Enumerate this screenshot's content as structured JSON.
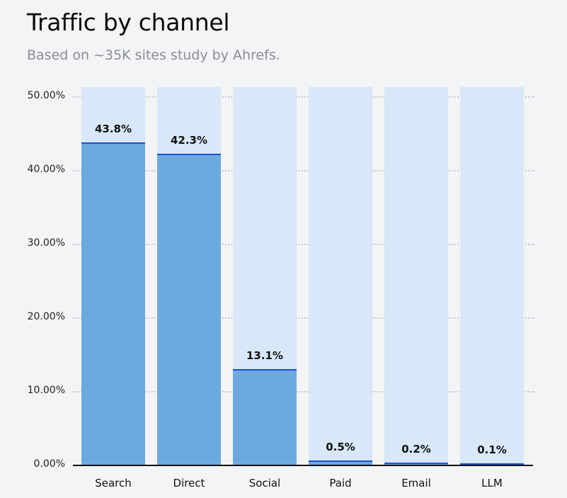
{
  "header": {
    "title": "Traffic by channel",
    "subtitle": "Based on ~35K sites study by Ahrefs."
  },
  "chart_data": {
    "type": "bar",
    "title": "Traffic by channel",
    "subtitle": "Based on ~35K sites study by Ahrefs.",
    "categories": [
      "Search",
      "Direct",
      "Social",
      "Paid",
      "Email",
      "LLM"
    ],
    "values": [
      43.8,
      42.3,
      13.1,
      0.5,
      0.2,
      0.1
    ],
    "value_labels": [
      "43.8%",
      "42.3%",
      "13.1%",
      "0.5%",
      "0.2%",
      "0.1%"
    ],
    "xlabel": "",
    "ylabel": "",
    "ylim": [
      0,
      50
    ],
    "yticks": [
      "0.00%",
      "10.00%",
      "20.00%",
      "30.00%",
      "40.00%",
      "50.00%"
    ],
    "grid": true,
    "legend": "none",
    "colors": {
      "fill": "#6da9e1",
      "background_track": "#d8e8f8",
      "top_line": "#1f4fd1"
    }
  }
}
